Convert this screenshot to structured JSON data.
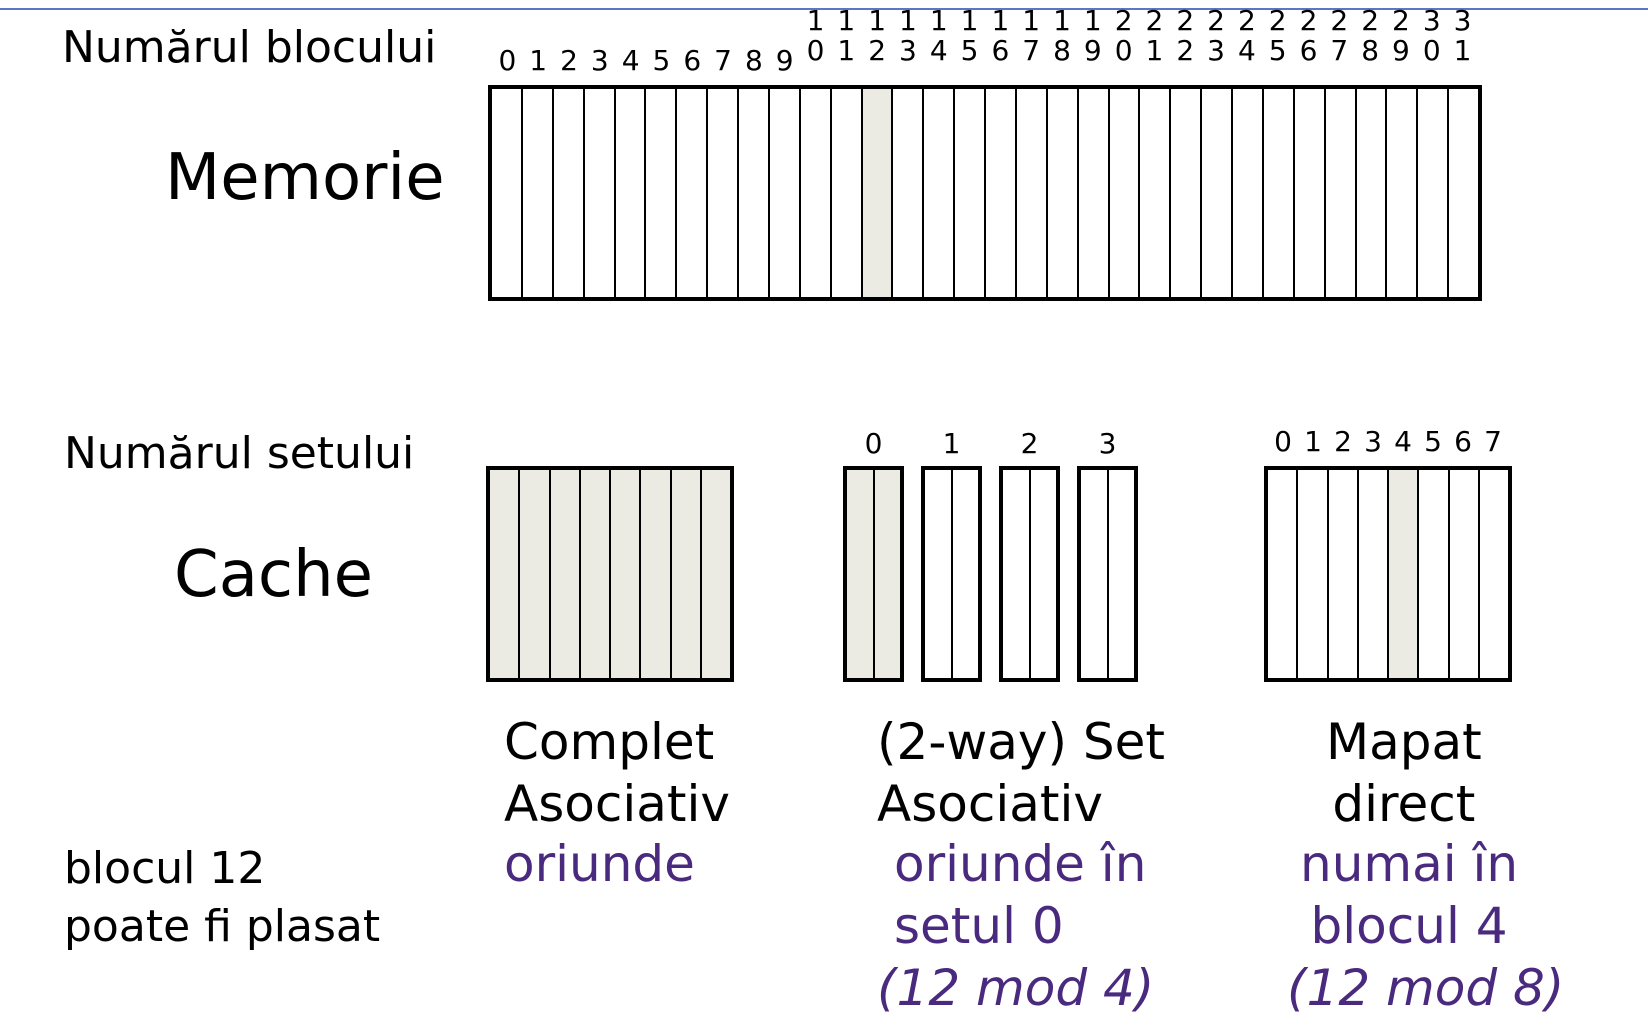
{
  "memory": {
    "row_label": "Numărul blocului",
    "title": "Memorie",
    "block_numbers": [
      "0",
      "1",
      "2",
      "3",
      "4",
      "5",
      "6",
      "7",
      "8",
      "9",
      "10",
      "11",
      "12",
      "13",
      "14",
      "15",
      "16",
      "17",
      "18",
      "19",
      "20",
      "21",
      "22",
      "23",
      "24",
      "25",
      "26",
      "27",
      "28",
      "29",
      "30",
      "31"
    ],
    "highlighted_block": 12
  },
  "cache": {
    "row_label": "Numărul setului",
    "title": "Cache",
    "fully_associative": {
      "caption": "Complet\nAsociativ",
      "placement": "oriunde",
      "highlighted_blocks": [
        0,
        1,
        2,
        3,
        4,
        5,
        6,
        7
      ]
    },
    "set_associative": {
      "caption": "(2-way) Set\nAsociativ",
      "placement": "oriunde în\nsetul 0",
      "formula": "(12 mod 4)",
      "set_numbers": [
        "0",
        "1",
        "2",
        "3"
      ],
      "highlighted_set": 0
    },
    "direct_mapped": {
      "caption": "Mapat\ndirect",
      "placement": "numai în\nblocul 4",
      "formula": "(12 mod 8)",
      "block_numbers": [
        "0",
        "1",
        "2",
        "3",
        "4",
        "5",
        "6",
        "7"
      ],
      "highlighted_block": 4
    }
  },
  "placement_label": "blocul 12\npoate fi plasat",
  "colors": {
    "highlight": "#ebebe3",
    "accent_text": "#4a2a7e",
    "top_line": "#5a76c4"
  }
}
